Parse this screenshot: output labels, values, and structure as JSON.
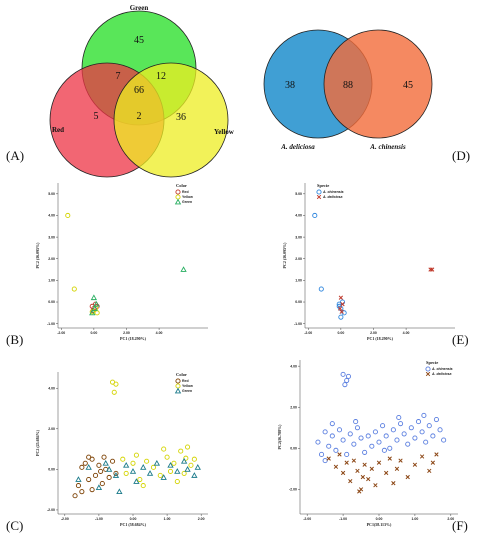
{
  "panels": {
    "A": {
      "label": "(A)",
      "sets": {
        "green": "Green",
        "red": "Red",
        "yellow": "Yellow"
      },
      "counts": {
        "green_only": "45",
        "red_only": "5",
        "yellow_only": "36",
        "red_green": "7",
        "green_yellow": "12",
        "red_yellow": "2",
        "all": "66"
      },
      "colors": {
        "green": "#22dd22",
        "red": "#ee3344",
        "yellow": "#eeee22"
      }
    },
    "D": {
      "label": "(D)",
      "sets": {
        "left": "A. deliciosa",
        "right": "A. chinensis"
      },
      "counts": {
        "left_only": "38",
        "both": "88",
        "right_only": "45"
      },
      "colors": {
        "left": "#1f8ecd",
        "right": "#f36b3a"
      }
    },
    "B": {
      "label": "(B)"
    },
    "C": {
      "label": "(C)"
    },
    "E": {
      "label": "(E)"
    },
    "F": {
      "label": "(F)"
    }
  },
  "chart_data": [
    {
      "type": "scatter",
      "panel": "B",
      "xlabel": "PC1 (18.290%)",
      "ylabel": "PC2 (16.095%)",
      "xlim": [
        -2.2,
        7
      ],
      "ylim": [
        -1.2,
        5.5
      ],
      "xticks": [
        "-2.00",
        "0.00",
        "2.00",
        "4.00"
      ],
      "xtick_vals": [
        -2,
        0,
        2,
        4
      ],
      "yticks": [
        "-1.00",
        "0.00",
        "1.00",
        "2.00",
        "3.00",
        "4.00",
        "5.00"
      ],
      "ytick_vals": [
        -1,
        0,
        1,
        2,
        3,
        4,
        5
      ],
      "legend_title": "Color",
      "legend_position": "top-right",
      "series": [
        {
          "name": "Red",
          "marker": "circle",
          "color": "#c0392b",
          "points": [
            [
              -0.1,
              -0.2
            ],
            [
              0.0,
              -0.3
            ],
            [
              0.2,
              -0.2
            ],
            [
              -0.05,
              -0.4
            ],
            [
              0.1,
              -0.1
            ]
          ]
        },
        {
          "name": "Yellow",
          "marker": "circle",
          "color": "#d4d400",
          "points": [
            [
              -1.6,
              4.0
            ],
            [
              -1.2,
              0.6
            ],
            [
              0.2,
              -0.5
            ],
            [
              0.1,
              -0.3
            ],
            [
              -0.1,
              -0.45
            ]
          ]
        },
        {
          "name": "Green",
          "marker": "triangle",
          "color": "#27ae60",
          "points": [
            [
              5.5,
              1.5
            ],
            [
              0.0,
              0.2
            ],
            [
              -0.1,
              -0.5
            ],
            [
              0.15,
              -0.1
            ],
            [
              0.05,
              -0.3
            ]
          ]
        }
      ]
    },
    {
      "type": "scatter",
      "panel": "E",
      "xlabel": "PC1 (18.290%)",
      "ylabel": "PC2 (16.095%)",
      "xlim": [
        -2.2,
        7
      ],
      "ylim": [
        -1.2,
        5.5
      ],
      "xticks": [
        "-2.00",
        "0.00",
        "2.00",
        "4.00"
      ],
      "xtick_vals": [
        -2,
        0,
        2,
        4
      ],
      "yticks": [
        "-1.00",
        "0.00",
        "1.00",
        "2.00",
        "3.00",
        "4.00",
        "5.00"
      ],
      "ytick_vals": [
        -1,
        0,
        1,
        2,
        3,
        4,
        5
      ],
      "legend_title": "Specie",
      "legend_position": "top-left",
      "series": [
        {
          "name": "A. chinensis",
          "marker": "circle",
          "color": "#2e86de",
          "points": [
            [
              -1.6,
              4.0
            ],
            [
              -1.2,
              0.6
            ],
            [
              -0.1,
              -0.2
            ],
            [
              0.0,
              -0.3
            ],
            [
              0.2,
              -0.5
            ],
            [
              0.0,
              -0.7
            ],
            [
              -0.1,
              -0.1
            ],
            [
              0.1,
              0.0
            ]
          ]
        },
        {
          "name": "A. deliciosa",
          "marker": "cross",
          "color": "#c0392b",
          "points": [
            [
              5.5,
              1.5
            ],
            [
              5.6,
              1.5
            ],
            [
              0.0,
              0.2
            ],
            [
              0.1,
              -0.1
            ],
            [
              -0.05,
              -0.3
            ],
            [
              0.05,
              -0.45
            ]
          ]
        }
      ]
    },
    {
      "type": "scatter",
      "panel": "C",
      "xlabel": "PC1 (58.684%)",
      "ylabel": "PC2 (25.684%)",
      "xlim": [
        -2.2,
        2.2
      ],
      "ylim": [
        -2.2,
        4.8
      ],
      "xticks": [
        "-2.00",
        "-1.00",
        "0.00",
        "1.00",
        "2.00"
      ],
      "xtick_vals": [
        -2,
        -1,
        0,
        1,
        2
      ],
      "yticks": [
        "-2.00",
        "0.00",
        "2.00",
        "4.00"
      ],
      "ytick_vals": [
        -2,
        0,
        2,
        4
      ],
      "legend_title": "Color",
      "legend_position": "top-right",
      "series": [
        {
          "name": "Red",
          "marker": "circle",
          "color": "#7b3f00",
          "points": [
            [
              -1.6,
              -0.8
            ],
            [
              -1.5,
              -1.1
            ],
            [
              -1.4,
              0.3
            ],
            [
              -1.3,
              -0.5
            ],
            [
              -1.2,
              0.5
            ],
            [
              -1.1,
              -0.3
            ],
            [
              -1.0,
              0.2
            ],
            [
              -0.9,
              -0.7
            ],
            [
              -0.8,
              0.0
            ],
            [
              -0.7,
              -0.4
            ],
            [
              -0.6,
              0.4
            ],
            [
              -1.7,
              -1.3
            ],
            [
              -1.5,
              0.1
            ],
            [
              -1.3,
              0.6
            ],
            [
              -1.2,
              -1.0
            ],
            [
              -0.95,
              -0.1
            ],
            [
              -0.85,
              0.6
            ],
            [
              -0.5,
              -0.2
            ]
          ]
        },
        {
          "name": "Yellow",
          "marker": "circle",
          "color": "#d4d400",
          "points": [
            [
              -0.6,
              4.3
            ],
            [
              -0.5,
              4.2
            ],
            [
              -0.55,
              3.8
            ],
            [
              -0.3,
              0.5
            ],
            [
              -0.2,
              -0.2
            ],
            [
              0.0,
              0.3
            ],
            [
              0.2,
              -0.5
            ],
            [
              0.4,
              0.4
            ],
            [
              0.6,
              0.1
            ],
            [
              0.8,
              -0.3
            ],
            [
              1.0,
              0.6
            ],
            [
              1.2,
              0.3
            ],
            [
              1.4,
              0.9
            ],
            [
              1.5,
              -0.2
            ],
            [
              1.6,
              1.1
            ],
            [
              1.7,
              0.2
            ],
            [
              0.9,
              1.0
            ],
            [
              1.3,
              -0.6
            ],
            [
              0.3,
              -0.8
            ],
            [
              1.8,
              0.5
            ],
            [
              0.1,
              0.7
            ],
            [
              1.1,
              -0.1
            ],
            [
              1.55,
              0.55
            ]
          ]
        },
        {
          "name": "Green",
          "marker": "triangle",
          "color": "#1a7a8a",
          "points": [
            [
              -1.6,
              -0.5
            ],
            [
              -1.3,
              0.1
            ],
            [
              -1.0,
              -0.9
            ],
            [
              -0.8,
              0.3
            ],
            [
              -0.5,
              -0.3
            ],
            [
              -0.2,
              0.2
            ],
            [
              0.1,
              -0.6
            ],
            [
              0.3,
              0.1
            ],
            [
              0.5,
              -0.2
            ],
            [
              0.7,
              0.3
            ],
            [
              0.9,
              -0.4
            ],
            [
              1.1,
              0.2
            ],
            [
              1.3,
              -0.1
            ],
            [
              1.6,
              0.0
            ],
            [
              1.8,
              -0.3
            ],
            [
              -0.4,
              -1.1
            ],
            [
              -0.7,
              0.0
            ],
            [
              0.0,
              -0.1
            ],
            [
              1.5,
              0.4
            ],
            [
              1.9,
              0.1
            ]
          ]
        }
      ]
    },
    {
      "type": "scatter",
      "panel": "F",
      "xlabel": "PC1(58.113%)",
      "ylabel": "PC2(16.788%)",
      "xlim": [
        -2.2,
        2.2
      ],
      "ylim": [
        -3.2,
        4.3
      ],
      "xticks": [
        "-2.00",
        "-1.00",
        "0.00",
        "1.00",
        "2.00"
      ],
      "xtick_vals": [
        -2,
        -1,
        0,
        1,
        2
      ],
      "yticks": [
        "-2.00",
        "0.00",
        "2.00",
        "4.00"
      ],
      "ytick_vals": [
        -2,
        0,
        2,
        4
      ],
      "legend_title": "Specie",
      "legend_position": "top-right",
      "series": [
        {
          "name": "A. chinensis",
          "marker": "circle",
          "color": "#5b7fe0",
          "points": [
            [
              -1.0,
              3.6
            ],
            [
              -0.9,
              3.3
            ],
            [
              -0.85,
              3.5
            ],
            [
              -0.95,
              3.1
            ],
            [
              -1.7,
              0.3
            ],
            [
              -1.6,
              -0.3
            ],
            [
              -1.5,
              0.8
            ],
            [
              -1.4,
              0.1
            ],
            [
              -1.3,
              0.6
            ],
            [
              -1.2,
              -0.1
            ],
            [
              -1.1,
              0.9
            ],
            [
              -1.0,
              0.4
            ],
            [
              -0.9,
              -0.3
            ],
            [
              -0.8,
              0.7
            ],
            [
              -0.7,
              0.2
            ],
            [
              -0.6,
              1.0
            ],
            [
              -0.5,
              0.5
            ],
            [
              -0.4,
              -0.2
            ],
            [
              -0.3,
              0.6
            ],
            [
              -0.2,
              0.1
            ],
            [
              -0.1,
              0.8
            ],
            [
              0.0,
              0.3
            ],
            [
              0.1,
              1.1
            ],
            [
              0.2,
              0.6
            ],
            [
              0.3,
              0.0
            ],
            [
              0.4,
              0.9
            ],
            [
              0.5,
              0.4
            ],
            [
              0.6,
              1.2
            ],
            [
              0.7,
              0.7
            ],
            [
              0.8,
              0.2
            ],
            [
              0.9,
              1.0
            ],
            [
              1.0,
              0.5
            ],
            [
              1.1,
              1.3
            ],
            [
              1.2,
              0.8
            ],
            [
              1.3,
              0.3
            ],
            [
              1.4,
              1.1
            ],
            [
              1.5,
              0.6
            ],
            [
              1.6,
              1.4
            ],
            [
              1.7,
              0.9
            ],
            [
              1.8,
              0.4
            ],
            [
              -1.5,
              -0.6
            ],
            [
              -1.3,
              1.2
            ],
            [
              -0.65,
              1.3
            ],
            [
              0.15,
              -0.1
            ],
            [
              0.55,
              1.5
            ],
            [
              1.25,
              1.6
            ]
          ]
        },
        {
          "name": "A. deliciosa",
          "marker": "cross",
          "color": "#8b4513",
          "points": [
            [
              -1.4,
              -0.5
            ],
            [
              -1.2,
              -0.9
            ],
            [
              -1.1,
              -0.3
            ],
            [
              -1.0,
              -1.2
            ],
            [
              -0.9,
              -0.7
            ],
            [
              -0.8,
              -1.6
            ],
            [
              -0.7,
              -0.6
            ],
            [
              -0.6,
              -1.1
            ],
            [
              -0.5,
              -2.0
            ],
            [
              -0.45,
              -1.4
            ],
            [
              -0.4,
              -0.8
            ],
            [
              -0.3,
              -1.5
            ],
            [
              -0.2,
              -1.0
            ],
            [
              -0.1,
              -1.8
            ],
            [
              0.0,
              -0.7
            ],
            [
              0.2,
              -1.2
            ],
            [
              0.3,
              -0.5
            ],
            [
              0.5,
              -1.0
            ],
            [
              0.6,
              -0.6
            ],
            [
              0.8,
              -1.4
            ],
            [
              1.0,
              -0.8
            ],
            [
              1.2,
              -0.4
            ],
            [
              1.4,
              -1.1
            ],
            [
              1.5,
              -0.7
            ],
            [
              1.6,
              -0.3
            ],
            [
              -0.55,
              -2.1
            ],
            [
              0.4,
              -1.7
            ]
          ]
        }
      ]
    }
  ]
}
